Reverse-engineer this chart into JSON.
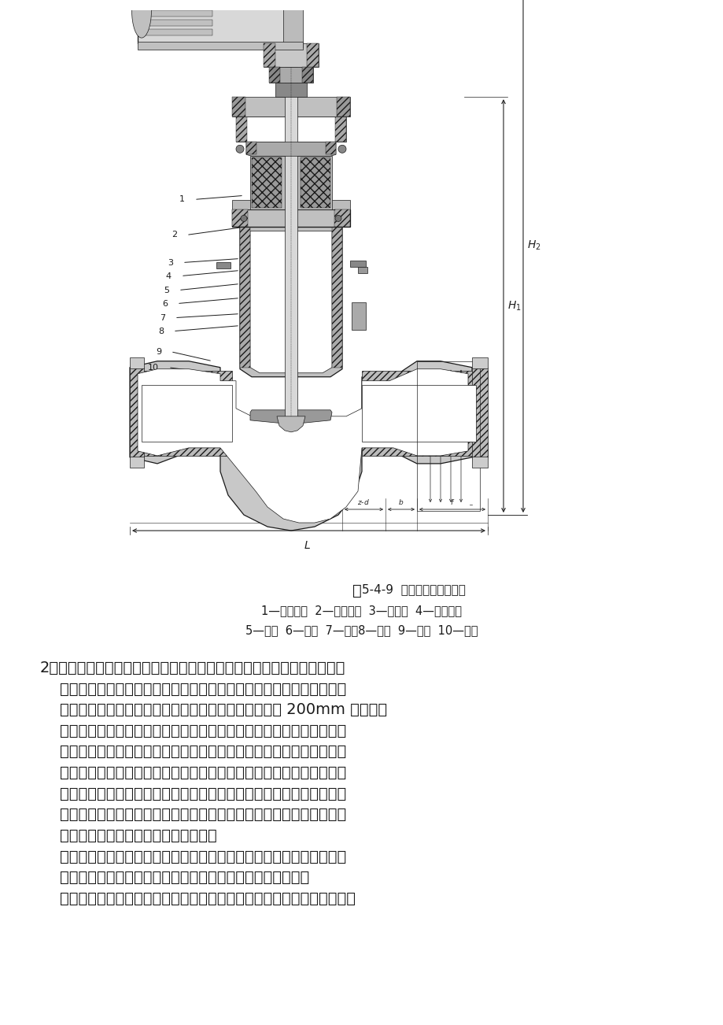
{
  "page_bg": "#ffffff",
  "page_width": 9.2,
  "page_height": 13.02,
  "dpi": 100,
  "figure_caption_main": "图",
  "figure_caption_sub": "5-4-9",
  "figure_caption_rest": "  电动平面密封截止阀",
  "caption_line1": "1—电动装置  2—阀杆螺母  3—导向块  4—填料压盖",
  "caption_line2": "5—填料  6—阀盖  7—垫片8—阀杆  9—阀瓣  10—阀体",
  "text_lines": [
    "2、截止阀：特点：操作可靠，开启高度小，关闭严密，启闭时间短，易于",
    "    调节和截断流量，缺点：其流体阻力大，开启关闭力较大，随着通路截",
    "    面积的增大而迅述增加，因此，截止阀一般是用在通径 200mm 以下的管",
    "    道。截止阀是用于截断介质流动的，截止阀的阀杆轴线与阀座密封面垂",
    "    直，通过带动阀芯的上下升降进行开断。截止阀一旦处于开启状态，它",
    "    的阀座和阀瓣密封面之间就不再有接触，并具有非常可靠的切断动作，",
    "    因而它的密封面机械磨损较小，由于大部分截止阀的阀座和阀瓣比较容",
    "    易修理或更换密封元件时无需把整个阀门从管线上拆下来，这对于阀门",
    "    和管线焊接成一体的场合是很适用的。",
    "    结构：按照结构可分为直通式、直流式、和角式，和闸阀不同的是：阀",
    "    头结构分为平面和锥面，阀座根据阀瓣形状为为平面和锥面。",
    "    截止阀是有方向的，安装时必须注意，介质方向是由下向上流过阀瓣的。"
  ],
  "black": "#1a1a1a",
  "dim_color": "#222222",
  "hatch_color": "#555555",
  "light_gray": "#d8d8d8",
  "mid_gray": "#aaaaaa",
  "white": "#ffffff"
}
